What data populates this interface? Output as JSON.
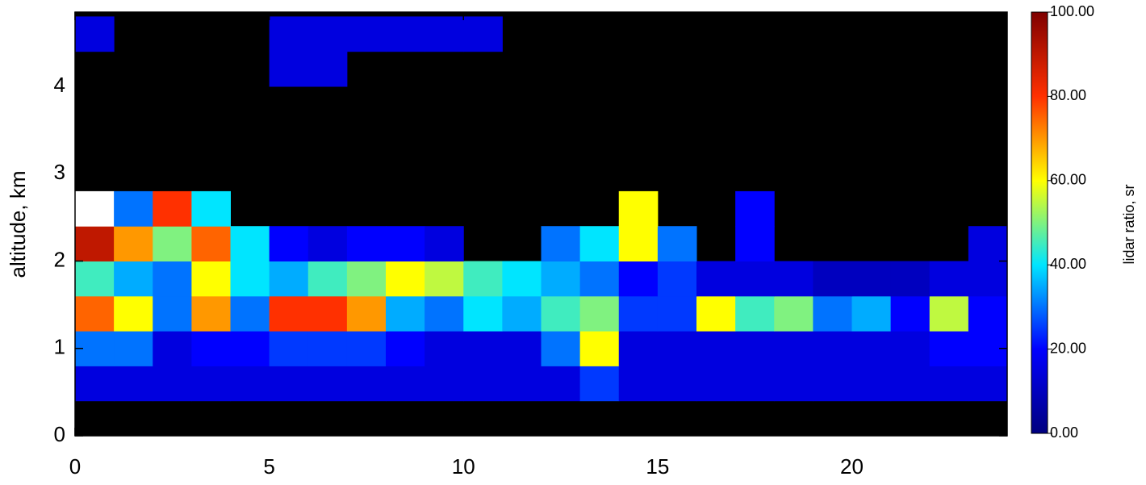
{
  "chart_data": {
    "type": "heatmap",
    "ylabel": "altitude, km",
    "colorbar_label": "lidar ratio, sr",
    "xlim": [
      0,
      24
    ],
    "xticks": [
      0,
      5,
      10,
      15,
      20
    ],
    "ylim": [
      0,
      4.85
    ],
    "yticks": [
      0,
      1,
      2,
      3,
      4
    ],
    "xbins": [
      0,
      1,
      2,
      3,
      4,
      5,
      6,
      7,
      8,
      9,
      10,
      11,
      12,
      13,
      14,
      15,
      16,
      17,
      18,
      19,
      20,
      21,
      22,
      23,
      24
    ],
    "ybins": [
      0,
      0.4,
      0.8,
      1.2,
      1.6,
      2.0,
      2.4,
      2.8,
      3.2,
      3.6,
      4.0,
      4.4,
      4.8
    ],
    "zlim": [
      0,
      100
    ],
    "zticks": [
      {
        "value": 0,
        "label": "0.00"
      },
      {
        "value": 20,
        "label": "20.00"
      },
      {
        "value": 40,
        "label": "40.00"
      },
      {
        "value": 60,
        "label": "60.00"
      },
      {
        "value": 80,
        "label": "80.00"
      },
      {
        "value": 100,
        "label": "100.00"
      }
    ],
    "colorscale": [
      "#00007f",
      "#0000ff",
      "#00e5ff",
      "#ffff00",
      "#ff3000",
      "#7f0000"
    ],
    "over_color": "#ffffff",
    "background": "#000000",
    "values": [
      [
        null,
        null,
        null,
        null,
        null,
        null,
        null,
        null,
        null,
        null,
        null,
        null,
        null,
        null,
        null,
        null,
        null,
        null,
        null,
        null,
        null,
        null,
        null,
        null
      ],
      [
        15,
        15,
        15,
        15,
        15,
        15,
        15,
        15,
        15,
        15,
        15,
        15,
        15,
        25,
        15,
        15,
        15,
        15,
        15,
        15,
        15,
        15,
        15,
        15
      ],
      [
        30,
        30,
        15,
        20,
        20,
        25,
        25,
        25,
        20,
        15,
        15,
        15,
        30,
        60,
        15,
        15,
        15,
        15,
        15,
        15,
        15,
        15,
        20,
        20
      ],
      [
        75,
        60,
        30,
        70,
        30,
        80,
        80,
        70,
        35,
        30,
        40,
        35,
        45,
        50,
        25,
        25,
        60,
        45,
        50,
        30,
        35,
        20,
        55,
        20
      ],
      [
        45,
        35,
        30,
        60,
        40,
        35,
        45,
        50,
        60,
        55,
        45,
        40,
        35,
        30,
        20,
        25,
        15,
        15,
        15,
        10,
        10,
        10,
        15,
        15
      ],
      [
        90,
        70,
        50,
        75,
        40,
        20,
        15,
        20,
        20,
        15,
        null,
        null,
        30,
        40,
        60,
        30,
        null,
        20,
        null,
        null,
        null,
        null,
        null,
        15
      ],
      [
        110,
        30,
        80,
        40,
        null,
        null,
        null,
        null,
        null,
        null,
        null,
        null,
        null,
        null,
        60,
        null,
        null,
        20,
        null,
        null,
        null,
        null,
        null,
        null
      ],
      [
        null,
        null,
        null,
        null,
        null,
        null,
        null,
        null,
        null,
        null,
        null,
        null,
        null,
        null,
        null,
        null,
        null,
        null,
        null,
        null,
        null,
        null,
        null,
        null
      ],
      [
        null,
        null,
        null,
        null,
        null,
        null,
        null,
        null,
        null,
        null,
        null,
        null,
        null,
        null,
        null,
        null,
        null,
        null,
        null,
        null,
        null,
        null,
        null,
        null
      ],
      [
        null,
        null,
        null,
        null,
        null,
        null,
        null,
        null,
        null,
        null,
        null,
        null,
        null,
        null,
        null,
        null,
        null,
        null,
        null,
        null,
        null,
        null,
        null,
        null
      ],
      [
        null,
        null,
        null,
        null,
        null,
        15,
        15,
        null,
        null,
        null,
        null,
        null,
        null,
        null,
        null,
        null,
        null,
        null,
        null,
        null,
        null,
        null,
        null,
        null
      ],
      [
        15,
        null,
        null,
        null,
        null,
        15,
        15,
        15,
        15,
        15,
        15,
        null,
        null,
        null,
        null,
        null,
        null,
        null,
        null,
        null,
        null,
        null,
        null,
        null
      ]
    ]
  }
}
